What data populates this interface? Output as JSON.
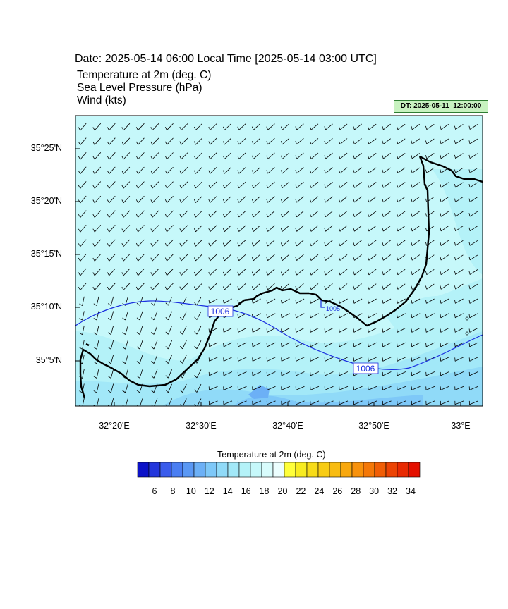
{
  "title": {
    "date_line": "Date: 2025-05-14  06:00 Local Time [2025-05-14  03:00 UTC]",
    "field1": "Temperature at 2m   (deg. C)",
    "field2": "Sea Level Pressure   (hPa)",
    "field3": "Wind   (kts)"
  },
  "badge": "DT: 2025-05-11_12:00:00",
  "axes": {
    "lat_labels": [
      "35°25'N",
      "35°20'N",
      "35°15'N",
      "35°10'N",
      "35°5'N"
    ],
    "lon_labels": [
      "32°20'E",
      "32°30'E",
      "32°40'E",
      "32°50'E",
      "33°E"
    ]
  },
  "isobars": [
    {
      "label": "1006"
    },
    {
      "label": "1005"
    },
    {
      "label": "1006"
    }
  ],
  "colorbar": {
    "title": "Temperature at 2m  (deg. C)",
    "labels": [
      "6",
      "8",
      "10",
      "12",
      "14",
      "16",
      "18",
      "20",
      "22",
      "24",
      "26",
      "28",
      "30",
      "32",
      "34"
    ],
    "colors": [
      "#0c12c8",
      "#2336dc",
      "#3a5cec",
      "#4a7ef2",
      "#5a98f4",
      "#6cb0f6",
      "#7ec8f8",
      "#90daf8",
      "#a2e8f8",
      "#b4f2f8",
      "#c6f8fa",
      "#d8fcfc",
      "#ecfefe",
      "#ffff3a",
      "#f8ec20",
      "#f8dc18",
      "#f8cc14",
      "#f8bc12",
      "#f8a80e",
      "#f8920c",
      "#f47808",
      "#f05e06",
      "#ec4404",
      "#e82a02",
      "#e41000"
    ],
    "line_colors": {
      "coast": "#000000",
      "isobar": "#1a2ee0"
    }
  }
}
